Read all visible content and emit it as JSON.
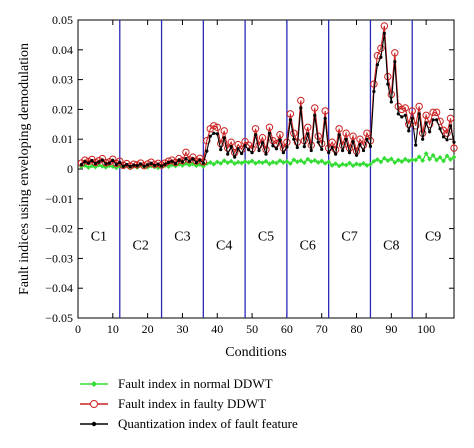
{
  "chart_data": {
    "type": "line",
    "title": "",
    "xlabel": "Conditions",
    "ylabel": "Fault indices using enveloping demodulation",
    "xlim": [
      0,
      108
    ],
    "ylim": [
      -0.05,
      0.05
    ],
    "xticks": [
      0,
      10,
      20,
      30,
      40,
      50,
      60,
      70,
      80,
      90,
      100
    ],
    "xtick_labels": [
      "0",
      "10",
      "20",
      "30",
      "40",
      "50",
      "60",
      "70",
      "80",
      "90",
      "100"
    ],
    "yticks": [
      -0.05,
      -0.04,
      -0.03,
      -0.02,
      -0.01,
      0,
      0.01,
      0.02,
      0.03,
      0.04,
      0.05
    ],
    "ytick_labels": [
      "−0.05",
      "−0.04",
      "−0.03",
      "−0.02",
      "−0.01",
      "0",
      "0.01",
      "0.02",
      "0.03",
      "0.04",
      "0.05"
    ],
    "grid": false,
    "legend_position": "below",
    "boundaries": [
      12,
      24,
      36,
      48,
      60,
      72,
      84,
      96
    ],
    "boundary_color": "#2a2ab8",
    "regions": [
      {
        "label": "C1",
        "x": 6,
        "y": -0.024
      },
      {
        "label": "C2",
        "x": 18,
        "y": -0.027
      },
      {
        "label": "C3",
        "x": 30,
        "y": -0.024
      },
      {
        "label": "C4",
        "x": 42,
        "y": -0.027
      },
      {
        "label": "C5",
        "x": 54,
        "y": -0.024
      },
      {
        "label": "C6",
        "x": 66,
        "y": -0.027
      },
      {
        "label": "C7",
        "x": 78,
        "y": -0.024
      },
      {
        "label": "C8",
        "x": 90,
        "y": -0.027
      },
      {
        "label": "C9",
        "x": 102,
        "y": -0.024
      }
    ],
    "series": [
      {
        "name": "Fault index in normal DDWT",
        "color": "#33dd33",
        "marker": "diamond",
        "values": [
          0.0008,
          0.0012,
          0.0005,
          0.001,
          0.0007,
          0.0013,
          0.0009,
          0.0006,
          0.0011,
          0.0008,
          0.0004,
          0.001,
          0.0007,
          0.0011,
          0.0006,
          0.0009,
          0.0005,
          0.0012,
          0.0008,
          0.0006,
          0.001,
          0.0007,
          0.0004,
          0.0009,
          0.0012,
          0.0008,
          0.0014,
          0.001,
          0.0016,
          0.0012,
          0.0018,
          0.0013,
          0.0017,
          0.0011,
          0.0015,
          0.0009,
          0.0018,
          0.0022,
          0.0016,
          0.0024,
          0.0019,
          0.0028,
          0.0021,
          0.0026,
          0.0018,
          0.0023,
          0.002,
          0.0025,
          0.0022,
          0.0027,
          0.0019,
          0.0024,
          0.0021,
          0.0026,
          0.0017,
          0.0023,
          0.002,
          0.0028,
          0.0022,
          0.0025,
          0.0018,
          0.0031,
          0.0024,
          0.0028,
          0.0021,
          0.0033,
          0.0025,
          0.0029,
          0.0022,
          0.0027,
          0.0019,
          0.0024,
          0.0012,
          0.0018,
          0.001,
          0.0016,
          0.0013,
          0.002,
          0.0011,
          0.0017,
          0.0014,
          0.0019,
          0.0012,
          0.0016,
          0.0026,
          0.0032,
          0.0024,
          0.0036,
          0.0028,
          0.0034,
          0.0022,
          0.003,
          0.0025,
          0.0033,
          0.0027,
          0.0031,
          0.003,
          0.0041,
          0.0028,
          0.0052,
          0.0033,
          0.0046,
          0.003,
          0.0039,
          0.0027,
          0.0044,
          0.0032,
          0.004
        ]
      },
      {
        "name": "Fault index in faulty DDWT",
        "color": "#cc2222",
        "marker": "circle",
        "values": [
          0.002,
          0.003,
          0.0025,
          0.0032,
          0.0022,
          0.0028,
          0.0035,
          0.0021,
          0.0024,
          0.0033,
          0.0019,
          0.0026,
          0.0012,
          0.0018,
          0.001,
          0.0016,
          0.0014,
          0.002,
          0.0011,
          0.0017,
          0.0023,
          0.0015,
          0.0019,
          0.0013,
          0.002,
          0.0026,
          0.003,
          0.0022,
          0.0035,
          0.0028,
          0.0056,
          0.0031,
          0.004,
          0.0027,
          0.0036,
          0.0024,
          0.0095,
          0.0135,
          0.0145,
          0.014,
          0.0085,
          0.0128,
          0.007,
          0.009,
          0.0055,
          0.0082,
          0.0066,
          0.0092,
          0.008,
          0.0068,
          0.0135,
          0.008,
          0.0105,
          0.0065,
          0.014,
          0.0095,
          0.0085,
          0.0115,
          0.007,
          0.009,
          0.0185,
          0.012,
          0.009,
          0.023,
          0.0095,
          0.014,
          0.008,
          0.0205,
          0.011,
          0.0085,
          0.0195,
          0.007,
          0.009,
          0.0065,
          0.0135,
          0.008,
          0.012,
          0.007,
          0.011,
          0.006,
          0.01,
          0.008,
          0.012,
          0.0095,
          0.0285,
          0.038,
          0.0405,
          0.048,
          0.031,
          0.025,
          0.039,
          0.021,
          0.02,
          0.0205,
          0.015,
          0.0195,
          0.0145,
          0.021,
          0.012,
          0.018,
          0.015,
          0.019,
          0.019,
          0.016,
          0.013,
          0.012,
          0.017,
          0.007
        ]
      },
      {
        "name": "Quantization index of fault feature",
        "color": "#000000",
        "marker": "dot",
        "values": [
          0.0015,
          0.0025,
          0.002,
          0.0028,
          0.0018,
          0.0024,
          0.003,
          0.0017,
          0.002,
          0.0029,
          0.0015,
          0.0022,
          0.0009,
          0.0015,
          0.0008,
          0.0013,
          0.0011,
          0.0017,
          0.0009,
          0.0014,
          0.0019,
          0.0012,
          0.0016,
          0.001,
          0.0016,
          0.0022,
          0.0026,
          0.0018,
          0.003,
          0.0024,
          0.0035,
          0.0026,
          0.0034,
          0.0022,
          0.003,
          0.002,
          0.006,
          0.011,
          0.012,
          0.0118,
          0.0065,
          0.0105,
          0.005,
          0.0075,
          0.004,
          0.0068,
          0.0052,
          0.0078,
          0.0065,
          0.0055,
          0.0115,
          0.0062,
          0.0088,
          0.005,
          0.012,
          0.0078,
          0.0068,
          0.0098,
          0.0055,
          0.0074,
          0.0165,
          0.01,
          0.0072,
          0.0205,
          0.0075,
          0.0118,
          0.0062,
          0.018,
          0.009,
          0.0066,
          0.017,
          0.0055,
          0.0072,
          0.005,
          0.0115,
          0.0062,
          0.01,
          0.0055,
          0.0092,
          0.0046,
          0.0082,
          0.0062,
          0.01,
          0.0076,
          0.026,
          0.035,
          0.0375,
          0.0455,
          0.0285,
          0.0225,
          0.036,
          0.0185,
          0.0175,
          0.018,
          0.0128,
          0.017,
          0.008,
          0.0185,
          0.01,
          0.0155,
          0.0125,
          0.0165,
          0.0165,
          0.0135,
          0.0108,
          0.0098,
          0.0145,
          0.009
        ]
      }
    ]
  }
}
